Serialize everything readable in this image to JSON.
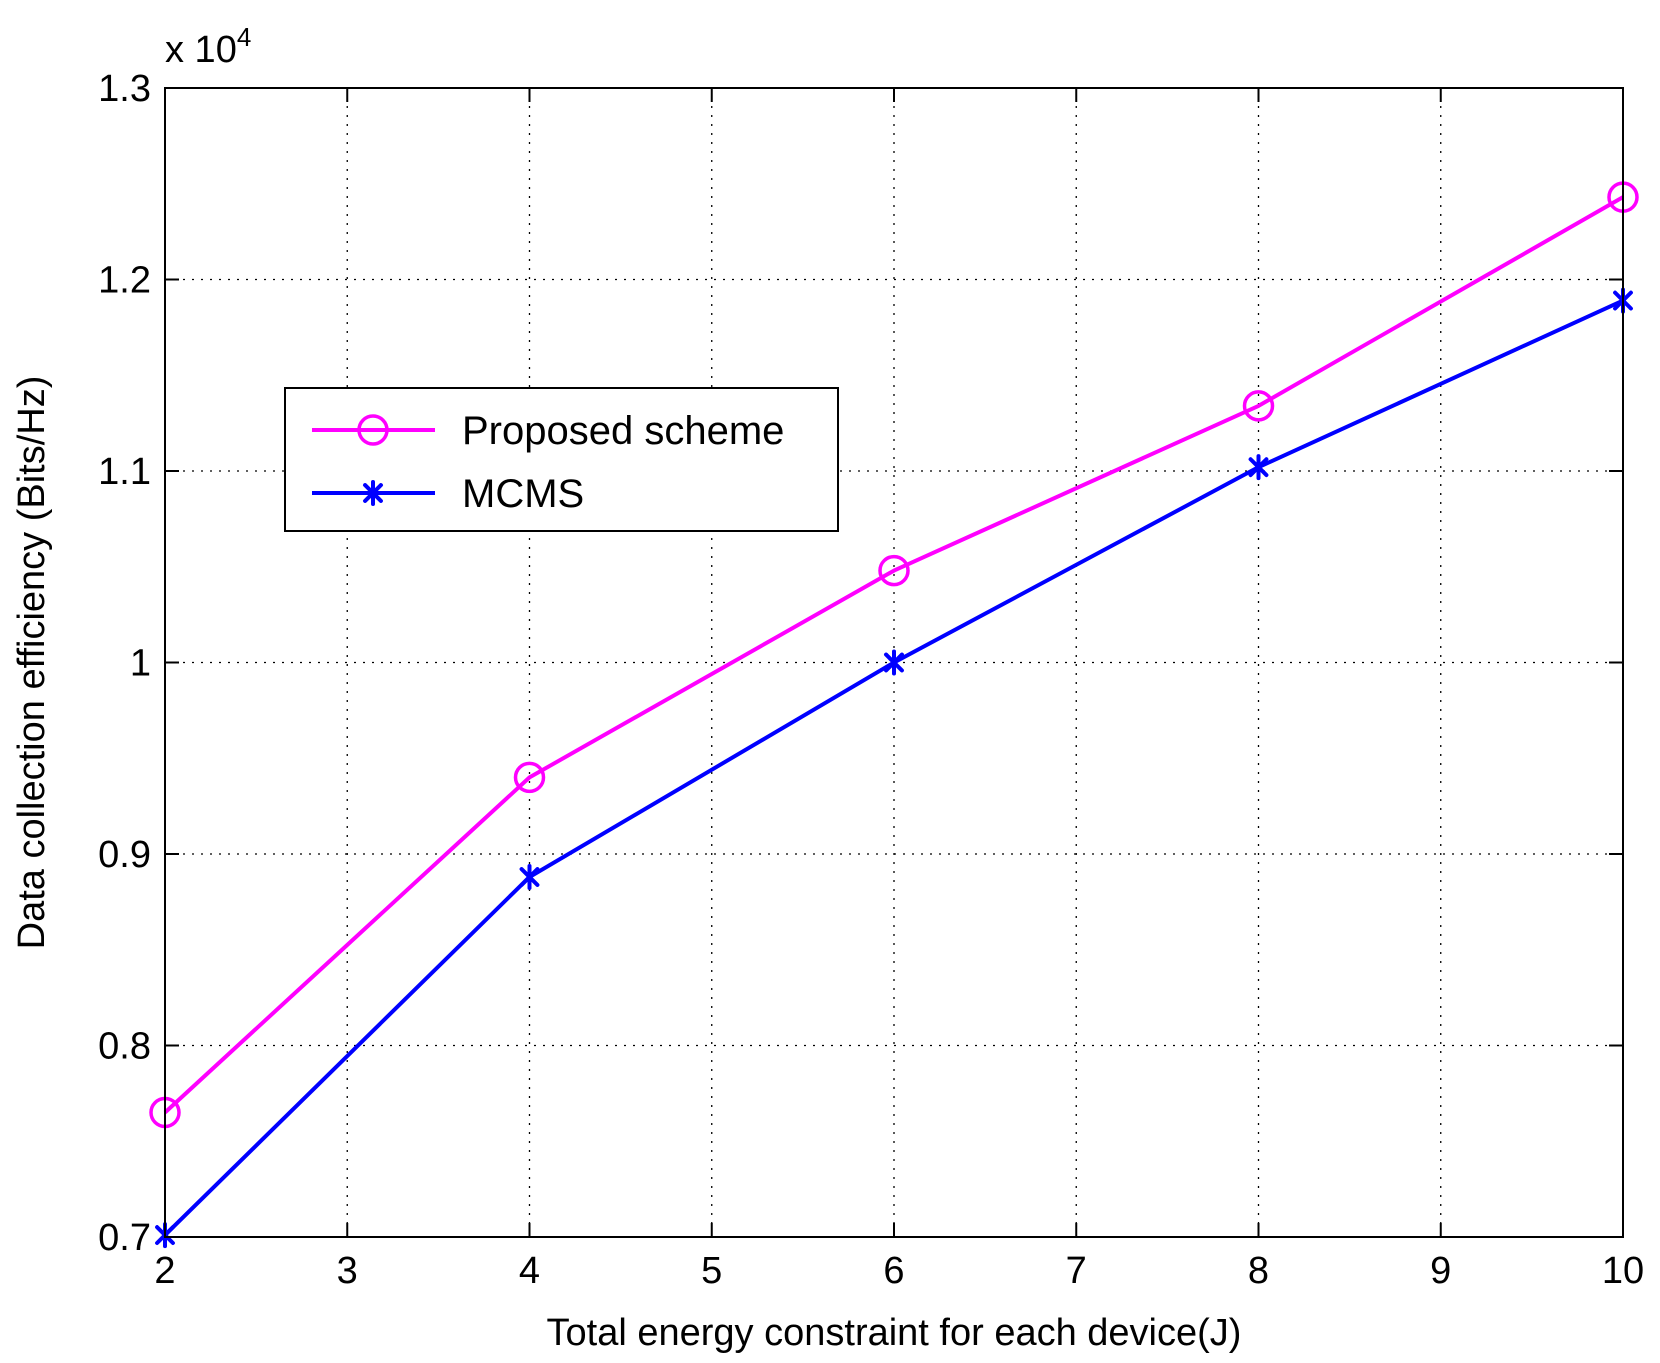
{
  "chart_data": {
    "type": "line",
    "title": "",
    "xlabel": "Total energy constraint for each device(J)",
    "ylabel": "Data collection efficiency (Bits/Hz)",
    "y_multiplier": {
      "base": "x 10",
      "exponent": "4"
    },
    "xlim": [
      2,
      10
    ],
    "ylim": [
      0.7,
      1.3
    ],
    "xticks": [
      2,
      3,
      4,
      5,
      6,
      7,
      8,
      9,
      10
    ],
    "yticks": [
      0.7,
      0.8,
      0.9,
      1.0,
      1.1,
      1.2,
      1.3
    ],
    "xtick_labels": [
      "2",
      "3",
      "4",
      "5",
      "6",
      "7",
      "8",
      "9",
      "10"
    ],
    "ytick_labels": [
      "0.7",
      "0.8",
      "0.9",
      "1",
      "1.1",
      "1.2",
      "1.3"
    ],
    "grid": true,
    "legend_position": "upper-left",
    "series": [
      {
        "name": "Proposed scheme",
        "color": "#ff00ff",
        "marker": "circle",
        "x": [
          2,
          4,
          6,
          8,
          10
        ],
        "values": [
          0.765,
          0.94,
          1.048,
          1.134,
          1.243
        ]
      },
      {
        "name": "MCMS",
        "color": "#0000ff",
        "marker": "asterisk",
        "x": [
          2,
          4,
          6,
          8,
          10
        ],
        "values": [
          0.701,
          0.888,
          1.0,
          1.102,
          1.189
        ]
      }
    ]
  }
}
